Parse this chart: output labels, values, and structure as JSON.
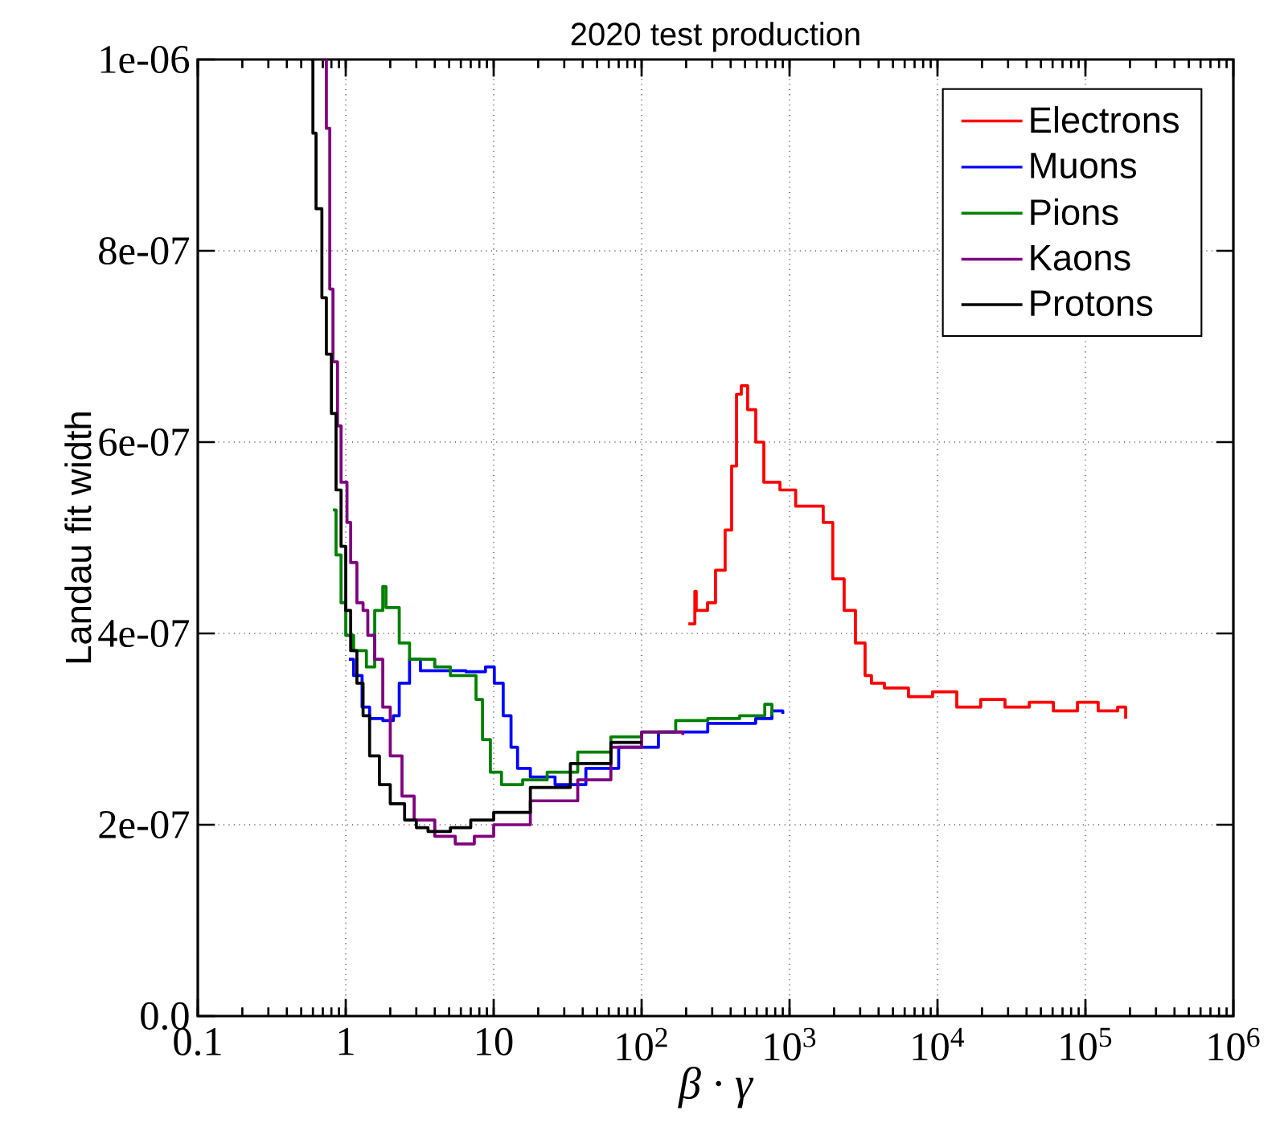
{
  "chart_data": {
    "type": "step",
    "title": "2020 test production",
    "xlabel": "β · γ",
    "ylabel": "Landau fit width",
    "log": "x",
    "grid": true,
    "legend": "top right",
    "line_style": "solid",
    "marker": "none",
    "xlim": [
      0.1,
      1000000
    ],
    "ylim": [
      0,
      1e-06
    ],
    "xticks": [
      0.1,
      1,
      10,
      {
        "value": 100,
        "label": "10$^{2}$"
      },
      {
        "value": 1000,
        "label": "10$^{3}$"
      },
      {
        "value": 10000,
        "label": "10$^{4}$"
      },
      {
        "value": 100000,
        "label": "10$^{5}$"
      },
      {
        "value": 1000000,
        "label": "10$^{6}$"
      }
    ],
    "yticks": [
      {
        "value": 0,
        "label": "0.0"
      },
      {
        "value": 2e-07,
        "label": "2e-07"
      },
      {
        "value": 4e-07,
        "label": "4e-07"
      },
      {
        "value": 6e-07,
        "label": "6e-07"
      },
      {
        "value": 8e-07,
        "label": "8e-07"
      },
      {
        "value": 1e-06,
        "label": "1e-06"
      }
    ],
    "series": [
      {
        "name": "Electrons",
        "color": "#ff0000",
        "x": [
          207,
          229,
          234,
          279,
          316,
          367,
          406,
          438,
          472,
          521,
          591,
          670,
          861,
          1100,
          1420,
          1690,
          1960,
          2340,
          2790,
          3240,
          3580,
          4380,
          6370,
          9270,
          13500,
          19600,
          28600,
          41700,
          60700,
          88300,
          122000,
          165000,
          187000
        ],
        "values": [
          4.1e-07,
          4.44e-07,
          4.24e-07,
          4.32e-07,
          4.66e-07,
          5.08e-07,
          5.75e-07,
          6.5e-07,
          6.59e-07,
          6.34e-07,
          6e-07,
          5.58e-07,
          5.5e-07,
          5.33e-07,
          5.33e-07,
          5.16e-07,
          4.57e-07,
          4.24e-07,
          3.9e-07,
          3.56e-07,
          3.48e-07,
          3.43e-07,
          3.34e-07,
          3.39e-07,
          3.23e-07,
          3.31e-07,
          3.23e-07,
          3.28e-07,
          3.19e-07,
          3.28e-07,
          3.19e-07,
          3.23e-07,
          3.11e-07
        ]
      },
      {
        "name": "Muons",
        "color": "#0000ff",
        "x": [
          1.05,
          1.13,
          1.29,
          1.45,
          1.78,
          2.1,
          2.3,
          2.7,
          3.2,
          4.5,
          6.5,
          8.8,
          10.1,
          11.6,
          13.1,
          14.5,
          17.7,
          26,
          42,
          70,
          130,
          280,
          590,
          760,
          900
        ],
        "values": [
          3.73e-07,
          3.56e-07,
          3.23e-07,
          3.11e-07,
          3.09e-07,
          3.14e-07,
          3.48e-07,
          3.73e-07,
          3.61e-07,
          3.61e-07,
          3.6e-07,
          3.65e-07,
          3.48e-07,
          3.14e-07,
          2.81e-07,
          2.59e-07,
          2.5e-07,
          2.42e-07,
          2.59e-07,
          2.81e-07,
          2.97e-07,
          3.06e-07,
          3.11e-07,
          3.19e-07,
          3.16e-07
        ]
      },
      {
        "name": "Pions",
        "color": "#008000",
        "x": [
          0.82,
          0.86,
          0.93,
          1.0,
          1.13,
          1.38,
          1.57,
          1.78,
          1.87,
          2.3,
          2.7,
          4.0,
          5.1,
          6.5,
          7.6,
          8.4,
          9.5,
          11.3,
          15.7,
          23,
          37,
          62,
          100,
          170,
          280,
          460,
          680,
          760
        ],
        "values": [
          5.29e-07,
          4.82e-07,
          4.32e-07,
          3.98e-07,
          3.82e-07,
          3.65e-07,
          4.24e-07,
          4.49e-07,
          4.27e-07,
          3.9e-07,
          3.73e-07,
          3.65e-07,
          3.56e-07,
          3.56e-07,
          3.31e-07,
          2.89e-07,
          2.55e-07,
          2.42e-07,
          2.47e-07,
          2.55e-07,
          2.76e-07,
          2.92e-07,
          2.97e-07,
          3.09e-07,
          3.11e-07,
          3.14e-07,
          3.26e-07,
          3.14e-07
        ]
      },
      {
        "name": "Kaons",
        "color": "#800080",
        "x": [
          0.69,
          0.74,
          0.78,
          0.82,
          0.88,
          0.93,
          1.02,
          1.08,
          1.19,
          1.31,
          1.41,
          1.57,
          1.78,
          2.0,
          2.4,
          2.9,
          4.0,
          5.5,
          7.4,
          10,
          17.7,
          37,
          62,
          100,
          190
        ],
        "values": [
          1e-06,
          9.28e-07,
          7.6e-07,
          6.84e-07,
          6.17e-07,
          5.58e-07,
          5.16e-07,
          4.74e-07,
          4.32e-07,
          4.24e-07,
          3.98e-07,
          3.73e-07,
          3.23e-07,
          2.72e-07,
          2.3e-07,
          2.05e-07,
          1.88e-07,
          1.8e-07,
          1.88e-07,
          2e-07,
          2.25e-07,
          2.47e-07,
          2.81e-07,
          2.97e-07,
          2.94e-07
        ]
      },
      {
        "name": "Protons",
        "color": "#000000",
        "x": [
          0.58,
          0.6,
          0.63,
          0.69,
          0.74,
          0.8,
          0.86,
          0.93,
          1.0,
          1.08,
          1.19,
          1.31,
          1.45,
          1.69,
          2.0,
          2.5,
          3.0,
          3.6,
          5.1,
          7.0,
          10,
          17.7,
          33,
          62,
          100
        ],
        "values": [
          1e-06,
          9.23e-07,
          8.44e-07,
          7.51e-07,
          6.92e-07,
          6.3e-07,
          5.5e-07,
          4.91e-07,
          4.24e-07,
          3.82e-07,
          3.48e-07,
          3.14e-07,
          2.72e-07,
          2.42e-07,
          2.22e-07,
          2.05e-07,
          1.97e-07,
          1.93e-07,
          1.97e-07,
          2.05e-07,
          2.13e-07,
          2.39e-07,
          2.64e-07,
          2.86e-07,
          2.86e-07
        ]
      }
    ]
  }
}
